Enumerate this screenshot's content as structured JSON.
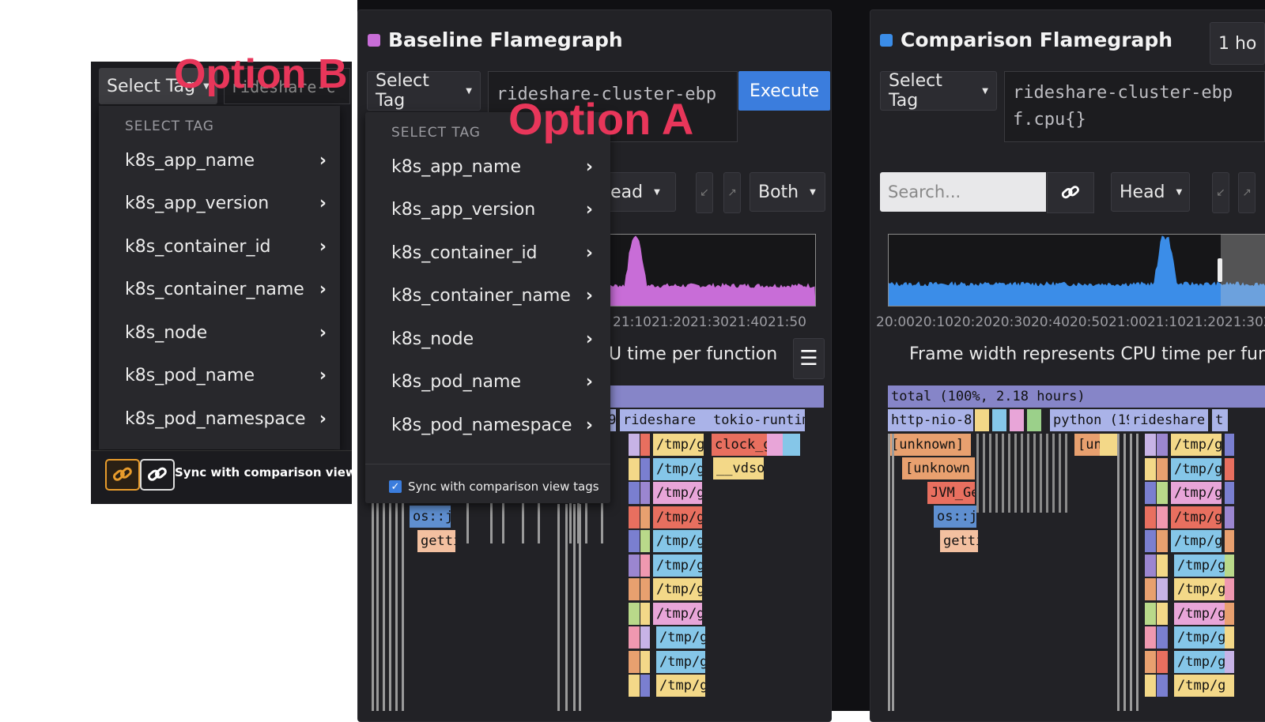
{
  "option_b": {
    "label": "Option B",
    "select_tag": "Select Tag",
    "query_preview": "rideshare-c",
    "menu_heading": "SELECT TAG",
    "tags": [
      "k8s_app_name",
      "k8s_app_version",
      "k8s_container_id",
      "k8s_container_name",
      "k8s_node",
      "k8s_pod_name",
      "k8s_pod_namespace"
    ],
    "sync_label": "Sync with comparison view..."
  },
  "baseline": {
    "title": "Baseline Flamegraph",
    "accent": "#c86dd7",
    "select_tag": "Select Tag",
    "query": "rideshare-cluster-ebp",
    "execute": "Execute",
    "head_partial": "lead",
    "both": "Both",
    "ticks": "21:1021:2021:3021:4021:50",
    "caption_partial": "U time per function",
    "option_label": "Option A",
    "menu_heading": "SELECT TAG",
    "tags": [
      "k8s_app_name",
      "k8s_app_version",
      "k8s_container_id",
      "k8s_container_name",
      "k8s_node",
      "k8s_pod_name",
      "k8s_pod_namespace"
    ],
    "sync_label": "Sync with comparison view tags",
    "flame": {
      "row1": [
        "19.",
        "rideshare",
        "tokio-runtim"
      ],
      "row2": [
        "/tmp/g",
        "clock_g"
      ],
      "row3": [
        "/tmp/g",
        "__vdso"
      ],
      "left_labels": [
        "os::j",
        "getti"
      ],
      "tmp_stack": [
        "/tmp/g",
        "/tmp/g",
        "/tmp/g",
        "/tmp/g",
        "/tmp/g",
        "/tmp/g",
        "/tmp/g",
        "/tmp/g",
        "/tmp/g",
        "/tmp/g",
        "/tmp/g"
      ]
    }
  },
  "comparison": {
    "title": "Comparison Flamegraph",
    "accent": "#3b8de8",
    "time_range_partial": "1 ho",
    "select_tag": "Select Tag",
    "query_line1": "rideshare-cluster-ebp",
    "query_line2": "f.cpu{}",
    "search_placeholder": "Search...",
    "head": "Head",
    "ticks": "20:0020:1020:2020:3020:4020:5021:0021:1021:2021:302",
    "caption": "Frame width represents CPU time per func",
    "flame": {
      "total": "total (100%, 2.18 hours)",
      "row1": [
        "http-nio-8",
        "python (19.",
        "rideshare",
        "t"
      ],
      "row2": [
        "[unknown]",
        "[un",
        "/tmp/go"
      ],
      "row3": [
        "[unknown",
        "/tmp/go"
      ],
      "row4": [
        "JVM_Ge",
        "/tmp/go"
      ],
      "row5": [
        "os::j",
        "/tmp/go"
      ],
      "row6": [
        "getti",
        "/tmp/go"
      ],
      "tmp_stack": [
        "/tmp/go",
        "/tmp/go",
        "/tmp/go",
        "/tmp/go",
        "/tmp/go",
        "/tmp/g",
        "/tmp/g",
        "/tmp/g",
        "/tmp/g",
        "/tmp/g",
        "/tmp/g"
      ]
    }
  }
}
